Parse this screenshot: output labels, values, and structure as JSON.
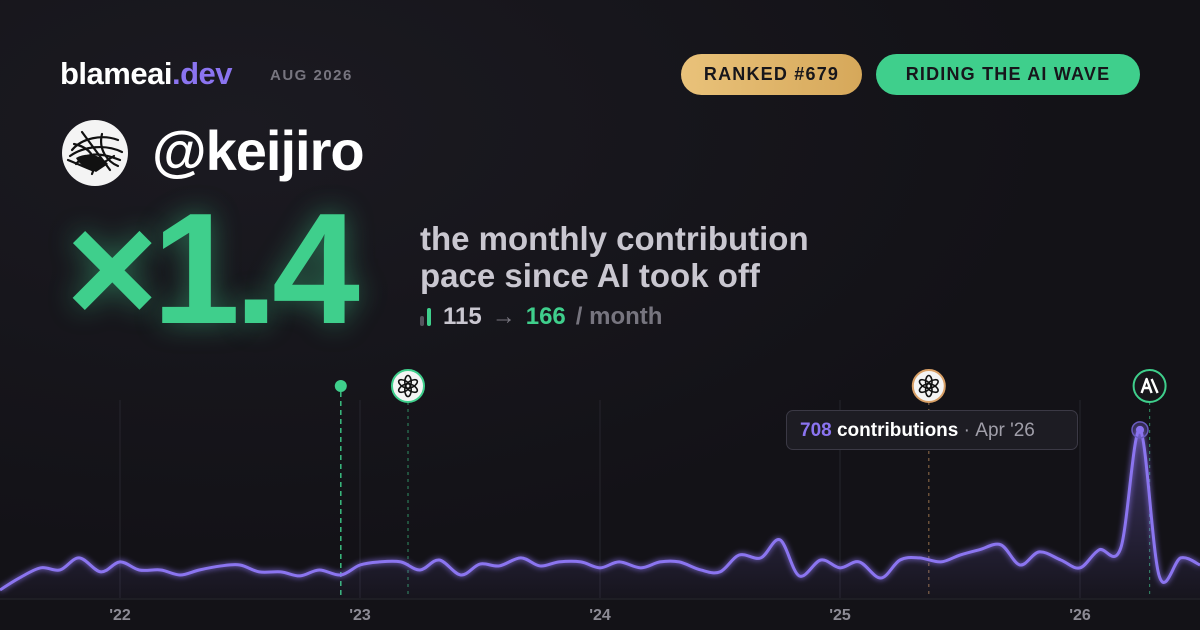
{
  "brand": {
    "name": "blameai",
    "tld": ".dev",
    "date": "AUG 2026"
  },
  "badges": [
    "RANKED #679",
    "RIDING THE AI WAVE"
  ],
  "user": {
    "handle": "@keijiro"
  },
  "multiplier": "×1.4",
  "description": [
    "the monthly contribution",
    "pace since AI took off"
  ],
  "pace": {
    "before": 115,
    "arrow": "→",
    "after": 166,
    "unit": "/ month"
  },
  "chart_data": {
    "type": "line",
    "x": [
      2021.5,
      2021.58,
      2021.67,
      2021.75,
      2021.83,
      2021.92,
      2022.0,
      2022.08,
      2022.17,
      2022.25,
      2022.33,
      2022.42,
      2022.5,
      2022.58,
      2022.67,
      2022.75,
      2022.83,
      2022.92,
      2023.0,
      2023.08,
      2023.17,
      2023.25,
      2023.33,
      2023.42,
      2023.5,
      2023.58,
      2023.67,
      2023.75,
      2023.83,
      2023.92,
      2024.0,
      2024.08,
      2024.17,
      2024.25,
      2024.33,
      2024.42,
      2024.5,
      2024.58,
      2024.67,
      2024.75,
      2024.83,
      2024.92,
      2025.0,
      2025.08,
      2025.17,
      2025.25,
      2025.33,
      2025.42,
      2025.5,
      2025.58,
      2025.67,
      2025.75,
      2025.83,
      2025.92,
      2026.0,
      2026.08,
      2026.17,
      2026.25,
      2026.33,
      2026.42,
      2026.5
    ],
    "values": [
      34,
      84,
      127,
      118,
      169,
      110,
      152,
      118,
      118,
      97,
      118,
      135,
      139,
      110,
      110,
      93,
      118,
      97,
      139,
      152,
      152,
      118,
      160,
      97,
      143,
      135,
      169,
      135,
      152,
      152,
      127,
      152,
      127,
      152,
      152,
      118,
      110,
      181,
      169,
      245,
      93,
      160,
      127,
      152,
      84,
      160,
      169,
      152,
      181,
      203,
      224,
      139,
      194,
      160,
      127,
      203,
      211,
      708,
      93,
      169,
      139
    ],
    "color": "#8b74f0",
    "xlim": [
      2021.5,
      2026.5
    ],
    "xticks": [
      {
        "value": 2022,
        "label": "'22"
      },
      {
        "value": 2023,
        "label": "'23"
      },
      {
        "value": 2024,
        "label": "'24"
      },
      {
        "value": 2025,
        "label": "'25"
      },
      {
        "value": 2026,
        "label": "'26"
      }
    ],
    "ylim": [
      0,
      800
    ],
    "grid": true,
    "events": [
      {
        "x": 2022.92,
        "color": "#3fcf8c"
      },
      {
        "x": 2023.2,
        "color": "#3fcf8c"
      },
      {
        "x": 2025.37,
        "color": "#d9a066"
      },
      {
        "x": 2026.29,
        "color": "#3fcf8c"
      }
    ],
    "tooltip": {
      "unit": "contributions",
      "sep": "·",
      "date": "Apr '26"
    }
  }
}
